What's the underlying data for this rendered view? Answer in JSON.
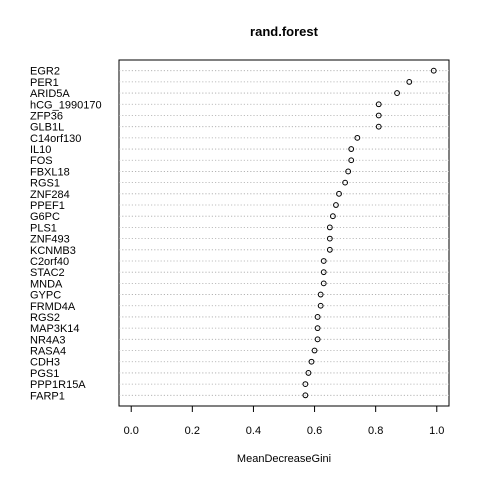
{
  "chart_data": {
    "type": "dotplot",
    "title": "rand.forest",
    "xlabel": "MeanDecreaseGini",
    "xlim": [
      -0.04,
      1.04
    ],
    "xticks": [
      "0.0",
      "0.2",
      "0.4",
      "0.6",
      "0.8",
      "1.0"
    ],
    "grid": "dotted horizontal lines per variable",
    "variables": [
      "EGR2",
      "PER1",
      "ARID5A",
      "hCG_1990170",
      "ZFP36",
      "GLB1L",
      "C14orf130",
      "IL10",
      "FOS",
      "FBXL18",
      "RGS1",
      "ZNF284",
      "PPEF1",
      "G6PC",
      "PLS1",
      "ZNF493",
      "KCNMB3",
      "C2orf40",
      "STAC2",
      "MNDA",
      "GYPC",
      "FRMD4A",
      "RGS2",
      "MAP3K14",
      "NR4A3",
      "RASA4",
      "CDH3",
      "PGS1",
      "PPP1R15A",
      "FARP1"
    ],
    "values": [
      0.99,
      0.91,
      0.87,
      0.81,
      0.81,
      0.81,
      0.74,
      0.72,
      0.72,
      0.71,
      0.7,
      0.68,
      0.67,
      0.66,
      0.65,
      0.65,
      0.65,
      0.63,
      0.63,
      0.63,
      0.62,
      0.62,
      0.61,
      0.61,
      0.61,
      0.6,
      0.59,
      0.58,
      0.57,
      0.57
    ]
  }
}
